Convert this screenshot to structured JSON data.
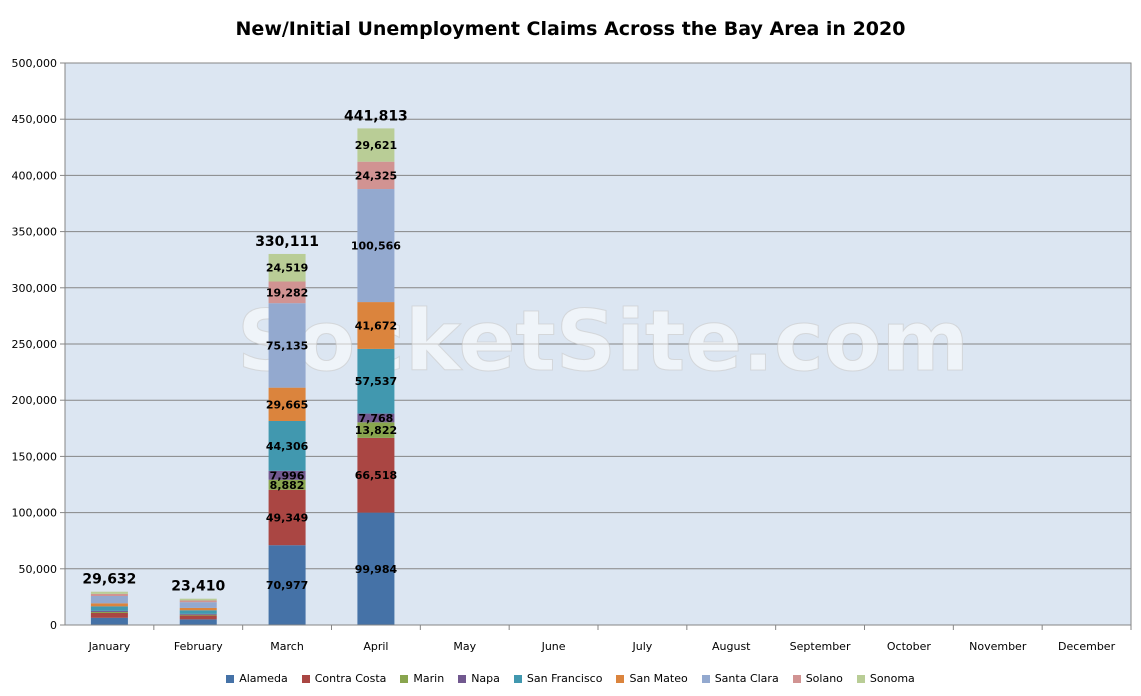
{
  "chart_data": {
    "type": "bar",
    "stacked": true,
    "title": "New/Initial Unemployment Claims Across the Bay Area in 2020",
    "watermark": "SocketSite.com",
    "categories": [
      "January",
      "February",
      "March",
      "April",
      "May",
      "June",
      "July",
      "August",
      "September",
      "October",
      "November",
      "December"
    ],
    "ylim": [
      0,
      500000
    ],
    "yticks": [
      "0",
      "50,000",
      "100,000",
      "150,000",
      "200,000",
      "250,000",
      "300,000",
      "350,000",
      "400,000",
      "450,000",
      "500,000"
    ],
    "ytick_values": [
      0,
      50000,
      100000,
      150000,
      200000,
      250000,
      300000,
      350000,
      400000,
      450000,
      500000
    ],
    "grid": true,
    "legend_position": "bottom",
    "background_color": "#dce6f2",
    "totals": [
      29632,
      23410,
      330111,
      441813,
      null,
      null,
      null,
      null,
      null,
      null,
      null,
      null
    ],
    "total_labels": [
      "29,632",
      "23,410",
      "330,111",
      "441,813",
      "",
      "",
      "",
      "",
      "",
      "",
      "",
      ""
    ],
    "series": [
      {
        "name": "Alameda",
        "color": "#4572a7",
        "values": [
          6400,
          5000,
          70977,
          99984,
          null,
          null,
          null,
          null,
          null,
          null,
          null,
          null
        ],
        "labels": [
          "",
          "",
          "70,977",
          "99,984",
          "",
          "",
          "",
          "",
          "",
          "",
          "",
          ""
        ]
      },
      {
        "name": "Contra Costa",
        "color": "#aa4643",
        "values": [
          4300,
          3400,
          49349,
          66518,
          null,
          null,
          null,
          null,
          null,
          null,
          null,
          null
        ],
        "labels": [
          "",
          "",
          "49,349",
          "66,518",
          "",
          "",
          "",
          "",
          "",
          "",
          "",
          ""
        ]
      },
      {
        "name": "Marin",
        "color": "#89a54e",
        "values": [
          900,
          700,
          8882,
          13822,
          null,
          null,
          null,
          null,
          null,
          null,
          null,
          null
        ],
        "labels": [
          "",
          "",
          "8,882",
          "13,822",
          "",
          "",
          "",
          "",
          "",
          "",
          "",
          ""
        ]
      },
      {
        "name": "Napa",
        "color": "#71588f",
        "values": [
          1000,
          800,
          7996,
          7768,
          null,
          null,
          null,
          null,
          null,
          null,
          null,
          null
        ],
        "labels": [
          "",
          "",
          "7,996",
          "7,768",
          "",
          "",
          "",
          "",
          "",
          "",
          "",
          ""
        ]
      },
      {
        "name": "San Francisco",
        "color": "#4198af",
        "values": [
          4000,
          3200,
          44306,
          57537,
          null,
          null,
          null,
          null,
          null,
          null,
          null,
          null
        ],
        "labels": [
          "",
          "",
          "44,306",
          "57,537",
          "",
          "",
          "",
          "",
          "",
          "",
          "",
          ""
        ]
      },
      {
        "name": "San Mateo",
        "color": "#db843d",
        "values": [
          2700,
          2100,
          29665,
          41672,
          null,
          null,
          null,
          null,
          null,
          null,
          null,
          null
        ],
        "labels": [
          "",
          "",
          "29,665",
          "41,672",
          "",
          "",
          "",
          "",
          "",
          "",
          "",
          ""
        ]
      },
      {
        "name": "Santa Clara",
        "color": "#93a9cf",
        "values": [
          6500,
          5100,
          75135,
          100566,
          null,
          null,
          null,
          null,
          null,
          null,
          null,
          null
        ],
        "labels": [
          "",
          "",
          "75,135",
          "100,566",
          "",
          "",
          "",
          "",
          "",
          "",
          "",
          ""
        ]
      },
      {
        "name": "Solano",
        "color": "#d19392",
        "values": [
          1900,
          1500,
          19282,
          24325,
          null,
          null,
          null,
          null,
          null,
          null,
          null,
          null
        ],
        "labels": [
          "",
          "",
          "19,282",
          "24,325",
          "",
          "",
          "",
          "",
          "",
          "",
          "",
          ""
        ]
      },
      {
        "name": "Sonoma",
        "color": "#b9cd96",
        "values": [
          1932,
          1610,
          24519,
          29621,
          null,
          null,
          null,
          null,
          null,
          null,
          null,
          null
        ],
        "labels": [
          "",
          "",
          "24,519",
          "29,621",
          "",
          "",
          "",
          "",
          "",
          "",
          "",
          ""
        ]
      }
    ]
  }
}
